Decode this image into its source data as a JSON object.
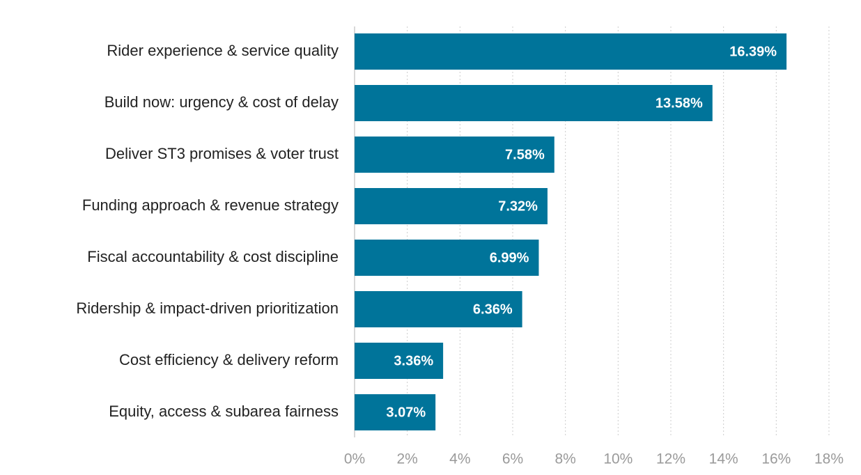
{
  "chart_data": {
    "type": "bar",
    "orientation": "horizontal",
    "color": "#00749a",
    "grid": true,
    "categories": [
      "Rider experience & service quality",
      "Build now: urgency & cost of delay",
      "Deliver ST3 promises & voter trust",
      "Funding approach & revenue strategy",
      "Fiscal accountability & cost discipline",
      "Ridership & impact-driven prioritization",
      "Cost efficiency & delivery reform",
      "Equity, access & subarea fairness"
    ],
    "values": [
      16.39,
      13.58,
      7.58,
      7.32,
      6.99,
      6.36,
      3.36,
      3.07
    ],
    "value_labels": [
      "16.39%",
      "13.58%",
      "7.58%",
      "7.32%",
      "6.99%",
      "6.36%",
      "3.36%",
      "3.07%"
    ],
    "xlim": [
      0,
      18
    ],
    "xticks": [
      {
        "value": 0,
        "label": "0%"
      },
      {
        "value": 2,
        "label": "2%"
      },
      {
        "value": 4,
        "label": "4%"
      },
      {
        "value": 6,
        "label": "6%"
      },
      {
        "value": 8,
        "label": "8%"
      },
      {
        "value": 10,
        "label": "10%"
      },
      {
        "value": 12,
        "label": "12%"
      },
      {
        "value": 14,
        "label": "14%"
      },
      {
        "value": 16,
        "label": "16%"
      },
      {
        "value": 18,
        "label": "18%"
      }
    ]
  }
}
